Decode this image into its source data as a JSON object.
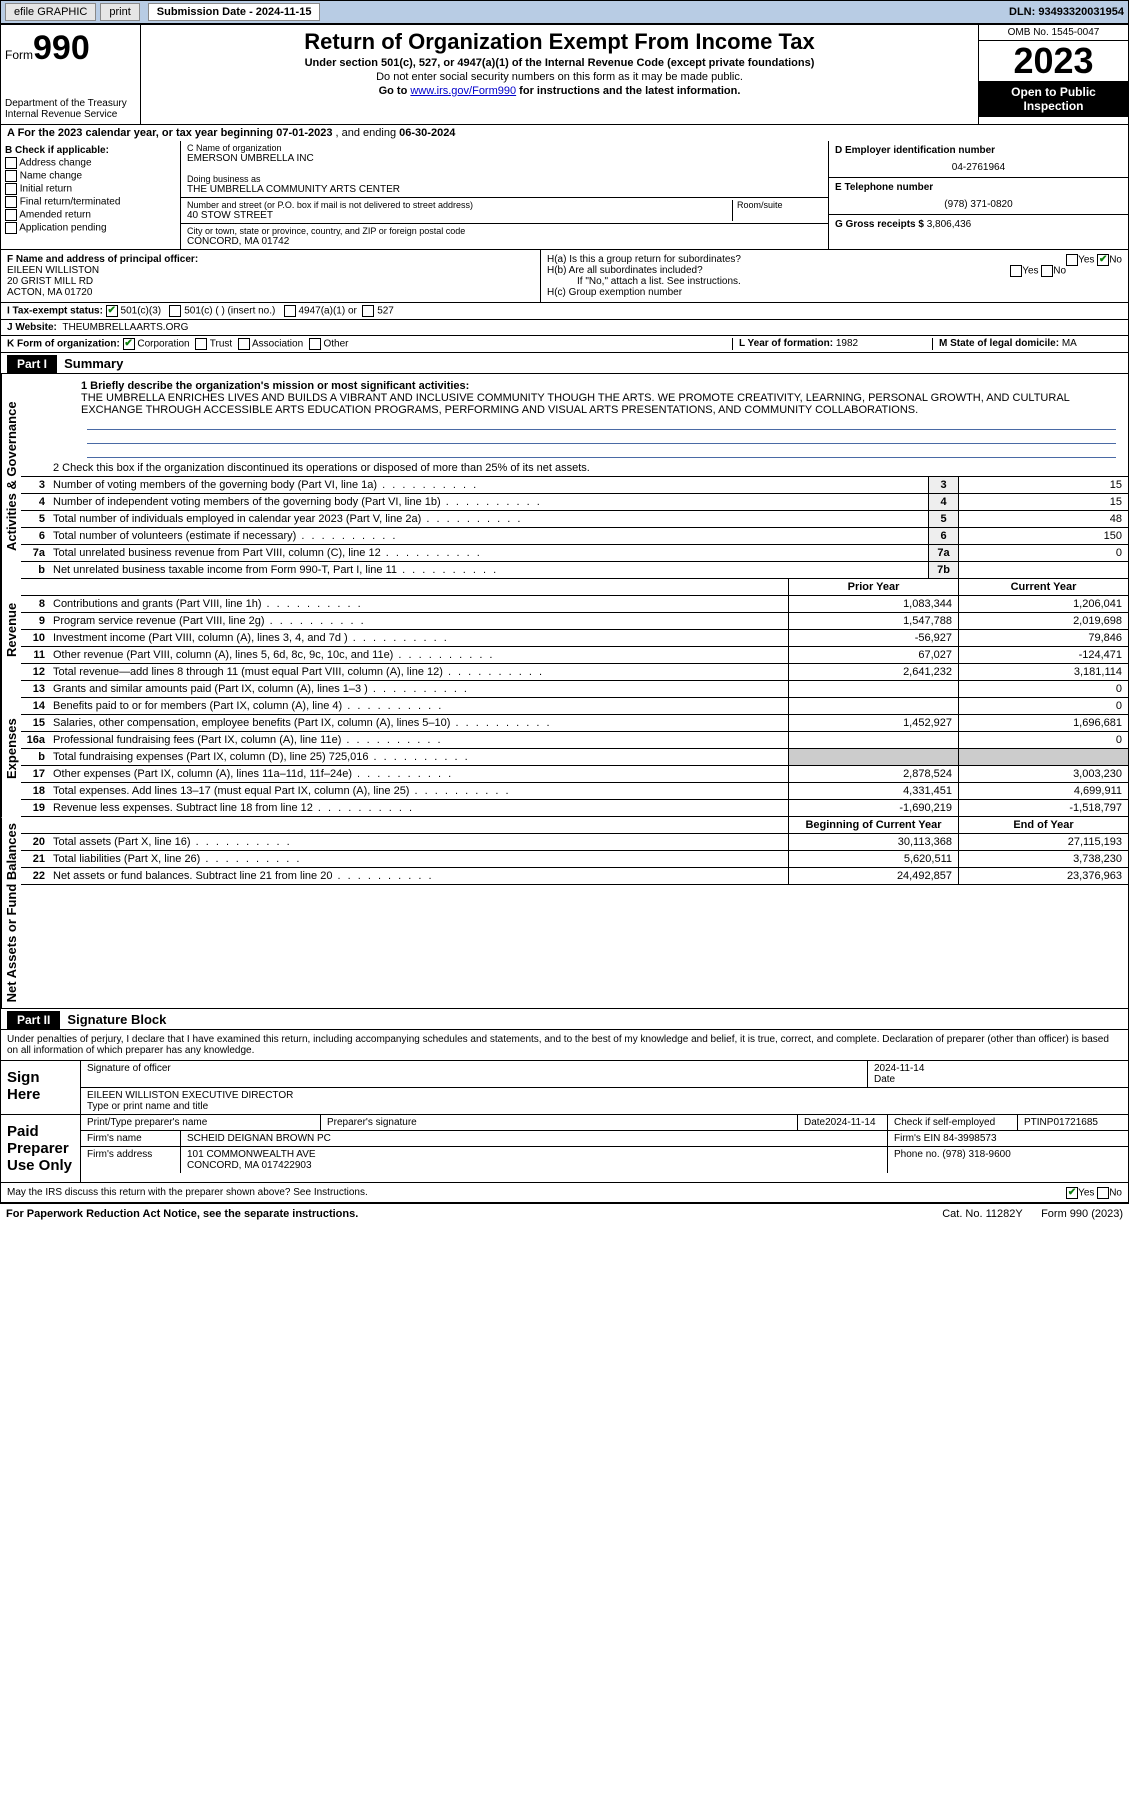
{
  "topbar": {
    "efile": "efile GRAPHIC",
    "print": "print",
    "submission_label": "Submission Date - 2024-11-15",
    "dln": "DLN: 93493320031954"
  },
  "header": {
    "form_label": "Form",
    "form_number": "990",
    "dept": "Department of the Treasury",
    "irs": "Internal Revenue Service",
    "title": "Return of Organization Exempt From Income Tax",
    "subtitle": "Under section 501(c), 527, or 4947(a)(1) of the Internal Revenue Code (except private foundations)",
    "note1": "Do not enter social security numbers on this form as it may be made public.",
    "note2_pre": "Go to ",
    "note2_link": "www.irs.gov/Form990",
    "note2_post": " for instructions and the latest information.",
    "omb": "OMB No. 1545-0047",
    "year": "2023",
    "inspect": "Open to Public Inspection"
  },
  "period": {
    "label_a": "A For the 2023 calendar year, or tax year beginning ",
    "begin": "07-01-2023",
    "mid": " , and ending ",
    "end": "06-30-2024"
  },
  "b": {
    "label": "B Check if applicable:",
    "addr_change": "Address change",
    "name_change": "Name change",
    "initial": "Initial return",
    "final": "Final return/terminated",
    "amended": "Amended return",
    "app_pending": "Application pending"
  },
  "c": {
    "name_label": "C Name of organization",
    "name": "EMERSON UMBRELLA INC",
    "dba_label": "Doing business as",
    "dba": "THE UMBRELLA COMMUNITY ARTS CENTER",
    "street_label": "Number and street (or P.O. box if mail is not delivered to street address)",
    "room_label": "Room/suite",
    "street": "40 STOW STREET",
    "city_label": "City or town, state or province, country, and ZIP or foreign postal code",
    "city": "CONCORD, MA  01742"
  },
  "d": {
    "label": "D Employer identification number",
    "value": "04-2761964"
  },
  "e": {
    "label": "E Telephone number",
    "value": "(978) 371-0820"
  },
  "g": {
    "label": "G Gross receipts $",
    "value": "3,806,436"
  },
  "f": {
    "label": "F Name and address of principal officer:",
    "name": "EILEEN WILLISTON",
    "street": "20 GRIST MILL RD",
    "city": "ACTON, MA  01720"
  },
  "h": {
    "a": "H(a)  Is this a group return for subordinates?",
    "b": "H(b)  Are all subordinates included?",
    "b_note": "If \"No,\" attach a list. See instructions.",
    "c": "H(c)  Group exemption number",
    "yes": "Yes",
    "no": "No"
  },
  "i": {
    "label": "I   Tax-exempt status:",
    "c3": "501(c)(3)",
    "c": "501(c) (   ) (insert no.)",
    "a1": "4947(a)(1) or",
    "s527": "527"
  },
  "j": {
    "label": "J   Website:",
    "value": "THEUMBRELLAARTS.ORG"
  },
  "k": {
    "label": "K Form of organization:",
    "corp": "Corporation",
    "trust": "Trust",
    "assoc": "Association",
    "other": "Other"
  },
  "l": {
    "label": "L Year of formation:",
    "value": "1982"
  },
  "m": {
    "label": "M State of legal domicile:",
    "value": "MA"
  },
  "part1": {
    "hdr": "Part I",
    "title": "Summary",
    "q1_label": "1  Briefly describe the organization's mission or most significant activities:",
    "mission": "THE UMBRELLA ENRICHES LIVES AND BUILDS A VIBRANT AND INCLUSIVE COMMUNITY THOUGH THE ARTS. WE PROMOTE CREATIVITY, LEARNING, PERSONAL GROWTH, AND CULTURAL EXCHANGE THROUGH ACCESSIBLE ARTS EDUCATION PROGRAMS, PERFORMING AND VISUAL ARTS PRESENTATIONS, AND COMMUNITY COLLABORATIONS.",
    "q2": "2   Check this box      if the organization discontinued its operations or disposed of more than 25% of its net assets.",
    "vtab_gov": "Activities & Governance",
    "vtab_rev": "Revenue",
    "vtab_exp": "Expenses",
    "vtab_net": "Net Assets or Fund Balances",
    "rows_gov": [
      {
        "n": "3",
        "d": "Number of voting members of the governing body (Part VI, line 1a)",
        "b": "3",
        "v": "15"
      },
      {
        "n": "4",
        "d": "Number of independent voting members of the governing body (Part VI, line 1b)",
        "b": "4",
        "v": "15"
      },
      {
        "n": "5",
        "d": "Total number of individuals employed in calendar year 2023 (Part V, line 2a)",
        "b": "5",
        "v": "48"
      },
      {
        "n": "6",
        "d": "Total number of volunteers (estimate if necessary)",
        "b": "6",
        "v": "150"
      },
      {
        "n": "7a",
        "d": "Total unrelated business revenue from Part VIII, column (C), line 12",
        "b": "7a",
        "v": "0"
      },
      {
        "n": "b",
        "d": "Net unrelated business taxable income from Form 990-T, Part I, line 11",
        "b": "7b",
        "v": ""
      }
    ],
    "prior": "Prior Year",
    "current": "Current Year",
    "rows_rev": [
      {
        "n": "8",
        "d": "Contributions and grants (Part VIII, line 1h)",
        "p": "1,083,344",
        "c": "1,206,041"
      },
      {
        "n": "9",
        "d": "Program service revenue (Part VIII, line 2g)",
        "p": "1,547,788",
        "c": "2,019,698"
      },
      {
        "n": "10",
        "d": "Investment income (Part VIII, column (A), lines 3, 4, and 7d )",
        "p": "-56,927",
        "c": "79,846"
      },
      {
        "n": "11",
        "d": "Other revenue (Part VIII, column (A), lines 5, 6d, 8c, 9c, 10c, and 11e)",
        "p": "67,027",
        "c": "-124,471"
      },
      {
        "n": "12",
        "d": "Total revenue—add lines 8 through 11 (must equal Part VIII, column (A), line 12)",
        "p": "2,641,232",
        "c": "3,181,114"
      }
    ],
    "rows_exp": [
      {
        "n": "13",
        "d": "Grants and similar amounts paid (Part IX, column (A), lines 1–3 )",
        "p": "",
        "c": "0"
      },
      {
        "n": "14",
        "d": "Benefits paid to or for members (Part IX, column (A), line 4)",
        "p": "",
        "c": "0"
      },
      {
        "n": "15",
        "d": "Salaries, other compensation, employee benefits (Part IX, column (A), lines 5–10)",
        "p": "1,452,927",
        "c": "1,696,681"
      },
      {
        "n": "16a",
        "d": "Professional fundraising fees (Part IX, column (A), line 11e)",
        "p": "",
        "c": "0"
      },
      {
        "n": "b",
        "d": "Total fundraising expenses (Part IX, column (D), line 25) 725,016",
        "p": "",
        "c": "",
        "single": true
      },
      {
        "n": "17",
        "d": "Other expenses (Part IX, column (A), lines 11a–11d, 11f–24e)",
        "p": "2,878,524",
        "c": "3,003,230"
      },
      {
        "n": "18",
        "d": "Total expenses. Add lines 13–17 (must equal Part IX, column (A), line 25)",
        "p": "4,331,451",
        "c": "4,699,911"
      },
      {
        "n": "19",
        "d": "Revenue less expenses. Subtract line 18 from line 12",
        "p": "-1,690,219",
        "c": "-1,518,797"
      }
    ],
    "begin": "Beginning of Current Year",
    "endyr": "End of Year",
    "rows_net": [
      {
        "n": "20",
        "d": "Total assets (Part X, line 16)",
        "p": "30,113,368",
        "c": "27,115,193"
      },
      {
        "n": "21",
        "d": "Total liabilities (Part X, line 26)",
        "p": "5,620,511",
        "c": "3,738,230"
      },
      {
        "n": "22",
        "d": "Net assets or fund balances. Subtract line 21 from line 20",
        "p": "24,492,857",
        "c": "23,376,963"
      }
    ]
  },
  "part2": {
    "hdr": "Part II",
    "title": "Signature Block",
    "perjury": "Under penalties of perjury, I declare that I have examined this return, including accompanying schedules and statements, and to the best of my knowledge and belief, it is true, correct, and complete. Declaration of preparer (other than officer) is based on all information of which preparer has any knowledge.",
    "sign_here": "Sign Here",
    "sig_officer": "Signature of officer",
    "date": "Date",
    "date_val": "2024-11-14",
    "officer_name": "EILEEN WILLISTON EXECUTIVE DIRECTOR",
    "type_name": "Type or print name and title",
    "paid": "Paid Preparer Use Only",
    "prep_name_lbl": "Print/Type preparer's name",
    "prep_sig_lbl": "Preparer's signature",
    "prep_date": "2024-11-14",
    "check_if": "Check       if self-employed",
    "ptin_lbl": "PTIN",
    "ptin": "P01721685",
    "firm_name_lbl": "Firm's name",
    "firm_name": "SCHEID DEIGNAN BROWN PC",
    "firm_ein_lbl": "Firm's EIN",
    "firm_ein": "84-3998573",
    "firm_addr_lbl": "Firm's address",
    "firm_addr1": "101 COMMONWEALTH AVE",
    "firm_addr2": "CONCORD, MA  017422903",
    "phone_lbl": "Phone no.",
    "phone": "(978) 318-9600",
    "discuss": "May the IRS discuss this return with the preparer shown above? See Instructions.",
    "yes": "Yes",
    "no": "No"
  },
  "footer": {
    "pra": "For Paperwork Reduction Act Notice, see the separate instructions.",
    "cat": "Cat. No. 11282Y",
    "form": "Form 990 (2023)"
  },
  "colors": {
    "topbar_bg": "#b8cce4",
    "link": "#0033cc",
    "check_green": "#0a7d0a",
    "mission_rule": "#4a6aa5"
  }
}
